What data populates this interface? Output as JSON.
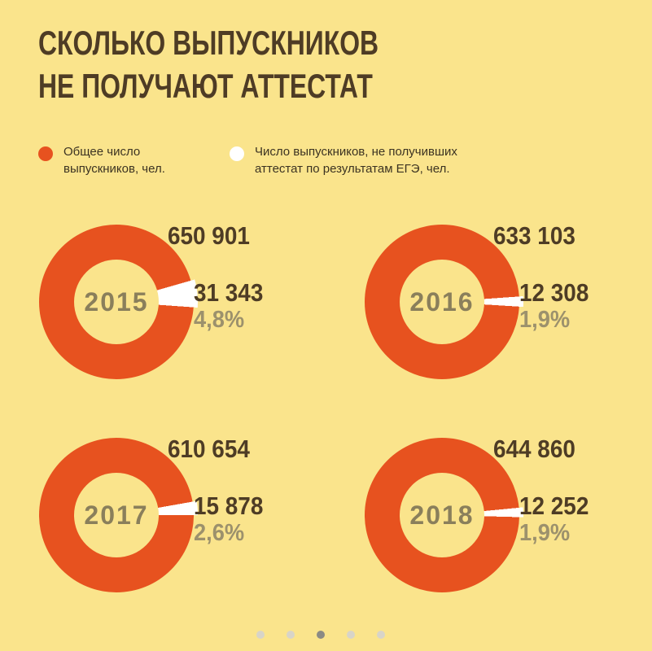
{
  "page": {
    "background_color": "#FAE48C",
    "accent_color": "#E7521F",
    "text_dark_color": "#4E3C25",
    "text_muted_color": "#9C916C"
  },
  "title": {
    "line1": "СКОЛЬКО ВЫПУСКНИКОВ",
    "line2": "НЕ ПОЛУЧАЮТ АТТЕСТАТ"
  },
  "legend": {
    "total": {
      "line1": "Общее число",
      "line2": "выпускников, чел.",
      "dot_color": "#E7521F"
    },
    "failed": {
      "line1": "Число выпускников, не получивших",
      "line2": "аттестат по результатам ЕГЭ, чел.",
      "dot_color": "#FFFFFF"
    }
  },
  "chart_data": {
    "type": "pie",
    "subtype": "donut-multiples",
    "title": "Сколько выпускников не получают аттестат",
    "legend_entries": [
      "Общее число выпускников, чел.",
      "Число выпускников, не получивших аттестат по результатам ЕГЭ, чел."
    ],
    "colors": {
      "total": "#E7521F",
      "failed": "#FFFFFF"
    },
    "series": [
      {
        "year": "2015",
        "total_label": "650 901",
        "failed_label": "31 343",
        "pct_label": "4,8%",
        "total_value": 650901,
        "failed_value": 31343,
        "failed_pct": 4.8,
        "slice_start_deg": 74,
        "slice_span_deg": 20
      },
      {
        "year": "2016",
        "total_label": "633 103",
        "failed_label": "12 308",
        "pct_label": "1,9%",
        "total_value": 633103,
        "failed_value": 12308,
        "failed_pct": 1.9,
        "slice_start_deg": 86,
        "slice_span_deg": 7.5
      },
      {
        "year": "2017",
        "total_label": "610 654",
        "failed_label": "15 878",
        "pct_label": "2,6%",
        "total_value": 610654,
        "failed_value": 15878,
        "failed_pct": 2.6,
        "slice_start_deg": 80,
        "slice_span_deg": 10
      },
      {
        "year": "2018",
        "total_label": "644 860",
        "failed_label": "12 252",
        "pct_label": "1,9%",
        "total_value": 644860,
        "failed_value": 12252,
        "failed_pct": 1.9,
        "slice_start_deg": 84.5,
        "slice_span_deg": 7
      }
    ]
  },
  "pagination": {
    "dot_count": 5,
    "active_position": 3
  }
}
